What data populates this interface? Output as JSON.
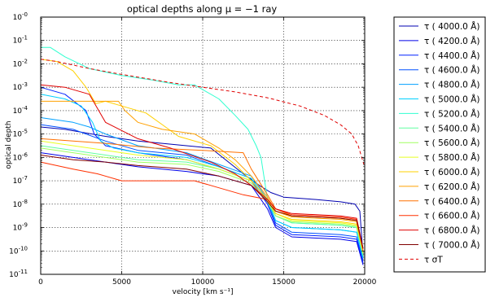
{
  "chart_data": {
    "type": "line",
    "title": "optical depths along μ = −1 ray",
    "xlabel": "velocity [km s⁻¹]",
    "ylabel": "optical depth",
    "xlim": [
      0,
      20000
    ],
    "ylim_log10": [
      -11,
      0
    ],
    "yscale": "log",
    "grid": true,
    "legend_placement": "outside-right",
    "x_ticks": [
      {
        "value": 0,
        "label": "0"
      },
      {
        "value": 5000,
        "label": "5000"
      },
      {
        "value": 10000,
        "label": "10000"
      },
      {
        "value": 15000,
        "label": "15000"
      },
      {
        "value": 20000,
        "label": "20000"
      }
    ],
    "y_ticks": [
      {
        "exp": 0,
        "label": "-0"
      },
      {
        "exp": -1,
        "label": "-1"
      },
      {
        "exp": -2,
        "label": "-2"
      },
      {
        "exp": -3,
        "label": "-3"
      },
      {
        "exp": -4,
        "label": "-4"
      },
      {
        "exp": -5,
        "label": "-5"
      },
      {
        "exp": -6,
        "label": "-6"
      },
      {
        "exp": -7,
        "label": "-7"
      },
      {
        "exp": -8,
        "label": "-8"
      },
      {
        "exp": -9,
        "label": "-9"
      },
      {
        "exp": -10,
        "label": "-10"
      },
      {
        "exp": -11,
        "label": "-11"
      }
    ],
    "y_tick_base": "10",
    "series": [
      {
        "name": "τ ( 4000.0 Å)",
        "color": "#0000b0",
        "style": "solid",
        "points": [
          [
            0,
            -4.7
          ],
          [
            1500,
            -4.8
          ],
          [
            4000,
            -5.1
          ],
          [
            6000,
            -5.3
          ],
          [
            9000,
            -5.5
          ],
          [
            10500,
            -5.6
          ],
          [
            12500,
            -6.7
          ],
          [
            13500,
            -7.2
          ],
          [
            14200,
            -7.5
          ],
          [
            15000,
            -7.7
          ],
          [
            17000,
            -7.8
          ],
          [
            18500,
            -7.9
          ],
          [
            19400,
            -8.0
          ],
          [
            19700,
            -8.3
          ],
          [
            19900,
            -10.2
          ]
        ]
      },
      {
        "name": "τ ( 4200.0 Å)",
        "color": "#0000e8",
        "style": "solid",
        "points": [
          [
            0,
            -5.8
          ],
          [
            1000,
            -5.9
          ],
          [
            4000,
            -6.2
          ],
          [
            6000,
            -6.4
          ],
          [
            9000,
            -6.6
          ],
          [
            11000,
            -6.8
          ],
          [
            13000,
            -7.2
          ],
          [
            14000,
            -8.2
          ],
          [
            14500,
            -9.0
          ],
          [
            15500,
            -9.4
          ],
          [
            18500,
            -9.5
          ],
          [
            19500,
            -9.6
          ],
          [
            19900,
            -10.6
          ]
        ]
      },
      {
        "name": "τ ( 4400.0 Å)",
        "color": "#0020ff",
        "style": "solid",
        "points": [
          [
            0,
            -3.0
          ],
          [
            1500,
            -3.3
          ],
          [
            2800,
            -4.0
          ],
          [
            3300,
            -5.0
          ],
          [
            4000,
            -5.5
          ],
          [
            6000,
            -5.8
          ],
          [
            9000,
            -6.1
          ],
          [
            11000,
            -6.5
          ],
          [
            13000,
            -7.0
          ],
          [
            14000,
            -8.0
          ],
          [
            14500,
            -8.9
          ],
          [
            15500,
            -9.3
          ],
          [
            18500,
            -9.4
          ],
          [
            19500,
            -9.5
          ],
          [
            19900,
            -10.5
          ]
        ]
      },
      {
        "name": "τ ( 4600.0 Å)",
        "color": "#0050ff",
        "style": "solid",
        "points": [
          [
            0,
            -4.6
          ],
          [
            2000,
            -4.8
          ],
          [
            4000,
            -5.3
          ],
          [
            6000,
            -5.7
          ],
          [
            9000,
            -5.9
          ],
          [
            11000,
            -6.4
          ],
          [
            13000,
            -6.9
          ],
          [
            14000,
            -7.9
          ],
          [
            14500,
            -8.8
          ],
          [
            15500,
            -9.2
          ],
          [
            18500,
            -9.3
          ],
          [
            19500,
            -9.4
          ],
          [
            19900,
            -10.4
          ]
        ]
      },
      {
        "name": "τ ( 4800.0 Å)",
        "color": "#00a0ff",
        "style": "solid",
        "points": [
          [
            0,
            -4.3
          ],
          [
            2000,
            -4.5
          ],
          [
            3000,
            -4.7
          ],
          [
            4000,
            -5.0
          ],
          [
            6000,
            -5.5
          ],
          [
            9000,
            -5.8
          ],
          [
            11000,
            -6.3
          ],
          [
            13000,
            -6.8
          ],
          [
            14000,
            -7.8
          ],
          [
            14500,
            -8.7
          ],
          [
            15500,
            -9.0
          ],
          [
            18500,
            -9.1
          ],
          [
            19500,
            -9.2
          ],
          [
            19900,
            -10.3
          ]
        ]
      },
      {
        "name": "τ ( 5000.0 Å)",
        "color": "#00d0ff",
        "style": "solid",
        "points": [
          [
            0,
            -3.3
          ],
          [
            1500,
            -3.5
          ],
          [
            2500,
            -3.8
          ],
          [
            3200,
            -4.5
          ],
          [
            3700,
            -5.3
          ],
          [
            4500,
            -5.6
          ],
          [
            6000,
            -5.8
          ],
          [
            9000,
            -6.0
          ],
          [
            11000,
            -6.4
          ],
          [
            13000,
            -6.9
          ],
          [
            14000,
            -7.9
          ],
          [
            14500,
            -8.7
          ],
          [
            15500,
            -9.0
          ],
          [
            18500,
            -9.1
          ],
          [
            19500,
            -9.2
          ],
          [
            19900,
            -10.3
          ]
        ]
      },
      {
        "name": "τ ( 5200.0 Å)",
        "color": "#30ffd0",
        "style": "solid",
        "points": [
          [
            0,
            -1.3
          ],
          [
            600,
            -1.3
          ],
          [
            1500,
            -1.7
          ],
          [
            3000,
            -2.2
          ],
          [
            5000,
            -2.5
          ],
          [
            7000,
            -2.7
          ],
          [
            8500,
            -2.9
          ],
          [
            9500,
            -2.9
          ],
          [
            10000,
            -3.1
          ],
          [
            11000,
            -3.5
          ],
          [
            12000,
            -4.2
          ],
          [
            12800,
            -4.8
          ],
          [
            13300,
            -5.5
          ],
          [
            13600,
            -6.0
          ],
          [
            14000,
            -7.8
          ],
          [
            14500,
            -8.5
          ],
          [
            15500,
            -8.8
          ],
          [
            18500,
            -8.9
          ],
          [
            19500,
            -9.0
          ],
          [
            19900,
            -10.2
          ]
        ]
      },
      {
        "name": "τ ( 5400.0 Å)",
        "color": "#60ffa0",
        "style": "solid",
        "points": [
          [
            0,
            -5.5
          ],
          [
            2000,
            -5.7
          ],
          [
            4000,
            -5.9
          ],
          [
            6000,
            -6.1
          ],
          [
            9000,
            -6.2
          ],
          [
            11000,
            -6.5
          ],
          [
            13000,
            -7.0
          ],
          [
            14000,
            -7.8
          ],
          [
            14500,
            -8.5
          ],
          [
            15500,
            -8.8
          ],
          [
            18500,
            -8.9
          ],
          [
            19500,
            -9.0
          ],
          [
            19900,
            -10.2
          ]
        ]
      },
      {
        "name": "τ ( 5600.0 Å)",
        "color": "#a0ff60",
        "style": "solid",
        "points": [
          [
            0,
            -5.6
          ],
          [
            2000,
            -5.8
          ],
          [
            4000,
            -6.0
          ],
          [
            6000,
            -6.2
          ],
          [
            9000,
            -6.3
          ],
          [
            11000,
            -6.6
          ],
          [
            13000,
            -7.1
          ],
          [
            14000,
            -7.9
          ],
          [
            14500,
            -8.5
          ],
          [
            15500,
            -8.75
          ],
          [
            18500,
            -8.85
          ],
          [
            19500,
            -8.95
          ],
          [
            19900,
            -10.1
          ]
        ]
      },
      {
        "name": "τ ( 5800.0 Å)",
        "color": "#e8ff20",
        "style": "solid",
        "points": [
          [
            0,
            -5.3
          ],
          [
            2000,
            -5.5
          ],
          [
            4000,
            -5.7
          ],
          [
            6000,
            -5.9
          ],
          [
            9000,
            -6.1
          ],
          [
            11000,
            -6.5
          ],
          [
            13000,
            -7.0
          ],
          [
            14000,
            -7.8
          ],
          [
            14500,
            -8.4
          ],
          [
            15500,
            -8.7
          ],
          [
            18500,
            -8.8
          ],
          [
            19500,
            -8.9
          ],
          [
            19900,
            -10.1
          ]
        ]
      },
      {
        "name": "τ ( 6000.0 Å)",
        "color": "#ffd000",
        "style": "solid",
        "points": [
          [
            0,
            -1.8
          ],
          [
            1000,
            -1.9
          ],
          [
            2000,
            -2.3
          ],
          [
            2800,
            -3.0
          ],
          [
            3400,
            -3.7
          ],
          [
            4000,
            -3.6
          ],
          [
            5000,
            -3.8
          ],
          [
            6500,
            -4.1
          ],
          [
            7500,
            -4.6
          ],
          [
            8500,
            -5.1
          ],
          [
            10500,
            -5.5
          ],
          [
            12000,
            -6.3
          ],
          [
            13000,
            -7.0
          ],
          [
            14000,
            -7.8
          ],
          [
            14500,
            -8.4
          ],
          [
            15500,
            -8.65
          ],
          [
            18500,
            -8.75
          ],
          [
            19500,
            -8.85
          ],
          [
            19900,
            -10.0
          ]
        ]
      },
      {
        "name": "τ ( 6200.0 Å)",
        "color": "#ffa000",
        "style": "solid",
        "points": [
          [
            0,
            -3.6
          ],
          [
            1000,
            -3.6
          ],
          [
            3000,
            -3.6
          ],
          [
            4800,
            -3.6
          ],
          [
            5200,
            -4.0
          ],
          [
            6000,
            -4.5
          ],
          [
            7500,
            -4.8
          ],
          [
            9500,
            -5.0
          ],
          [
            11000,
            -5.6
          ],
          [
            12000,
            -6.1
          ],
          [
            13000,
            -6.8
          ],
          [
            14000,
            -7.7
          ],
          [
            14500,
            -8.3
          ],
          [
            15500,
            -8.55
          ],
          [
            18500,
            -8.65
          ],
          [
            19500,
            -8.75
          ],
          [
            19900,
            -10.0
          ]
        ]
      },
      {
        "name": "τ ( 6400.0 Å)",
        "color": "#ff7000",
        "style": "solid",
        "points": [
          [
            0,
            -5.2
          ],
          [
            2000,
            -5.3
          ],
          [
            4000,
            -5.4
          ],
          [
            7000,
            -5.6
          ],
          [
            10000,
            -5.7
          ],
          [
            12500,
            -5.8
          ],
          [
            13000,
            -6.5
          ],
          [
            14000,
            -7.6
          ],
          [
            14500,
            -8.2
          ],
          [
            15500,
            -8.5
          ],
          [
            18500,
            -8.6
          ],
          [
            19500,
            -8.7
          ],
          [
            19900,
            -10.0
          ]
        ]
      },
      {
        "name": "τ ( 6600.0 Å)",
        "color": "#ff3000",
        "style": "solid",
        "points": [
          [
            0,
            -6.2
          ],
          [
            2000,
            -6.5
          ],
          [
            3500,
            -6.7
          ],
          [
            5000,
            -7.0
          ],
          [
            7000,
            -7.0
          ],
          [
            9500,
            -7.0
          ],
          [
            11000,
            -7.3
          ],
          [
            12500,
            -7.6
          ],
          [
            14000,
            -7.8
          ],
          [
            14500,
            -8.2
          ],
          [
            15500,
            -8.45
          ],
          [
            18500,
            -8.55
          ],
          [
            19500,
            -8.65
          ],
          [
            19900,
            -9.9
          ]
        ]
      },
      {
        "name": "τ ( 6800.0 Å)",
        "color": "#e00000",
        "style": "solid",
        "points": [
          [
            0,
            -2.9
          ],
          [
            1500,
            -3.0
          ],
          [
            3000,
            -3.3
          ],
          [
            4000,
            -4.5
          ],
          [
            6000,
            -5.2
          ],
          [
            8000,
            -5.6
          ],
          [
            10500,
            -6.2
          ],
          [
            12000,
            -6.7
          ],
          [
            13000,
            -7.2
          ],
          [
            14000,
            -7.8
          ],
          [
            14500,
            -8.2
          ],
          [
            15500,
            -8.4
          ],
          [
            18500,
            -8.5
          ],
          [
            19500,
            -8.6
          ],
          [
            19900,
            -9.9
          ]
        ]
      },
      {
        "name": "τ ( 7000.0 Å)",
        "color": "#800000",
        "style": "solid",
        "points": [
          [
            0,
            -5.9
          ],
          [
            2000,
            -6.1
          ],
          [
            4000,
            -6.2
          ],
          [
            6000,
            -6.35
          ],
          [
            9000,
            -6.5
          ],
          [
            11000,
            -6.8
          ],
          [
            13000,
            -7.2
          ],
          [
            14000,
            -7.9
          ],
          [
            14500,
            -8.3
          ],
          [
            15500,
            -8.5
          ],
          [
            18500,
            -8.6
          ],
          [
            19500,
            -8.7
          ],
          [
            19900,
            -9.9
          ]
        ]
      },
      {
        "name": "τ σT",
        "color": "#e00000",
        "style": "dashed",
        "points": [
          [
            0,
            -1.8
          ],
          [
            1000,
            -1.9
          ],
          [
            3000,
            -2.2
          ],
          [
            5000,
            -2.45
          ],
          [
            8000,
            -2.8
          ],
          [
            10000,
            -3.0
          ],
          [
            12000,
            -3.2
          ],
          [
            14000,
            -3.45
          ],
          [
            16000,
            -3.8
          ],
          [
            17500,
            -4.2
          ],
          [
            18500,
            -4.6
          ],
          [
            19200,
            -5.0
          ],
          [
            19600,
            -5.5
          ],
          [
            19950,
            -6.3
          ]
        ]
      }
    ]
  }
}
